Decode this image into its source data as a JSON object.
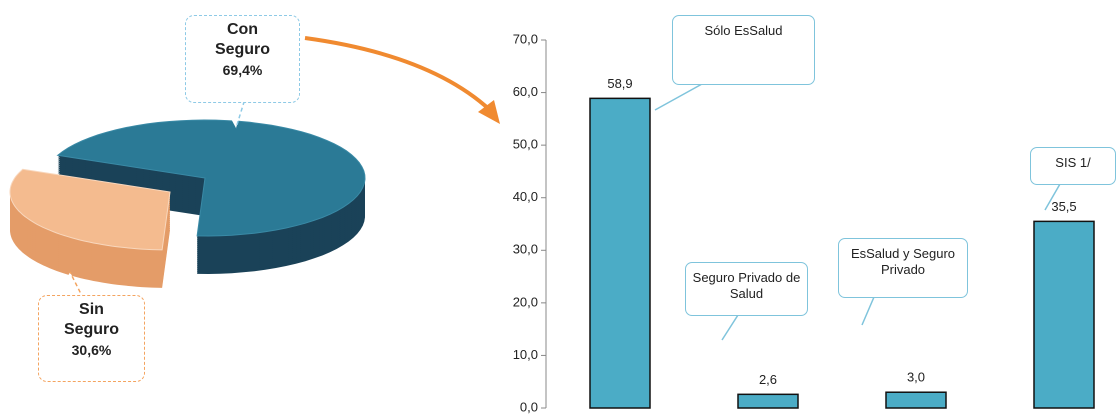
{
  "chart_data": [
    {
      "type": "pie",
      "categories": [
        "Con Seguro",
        "Sin Seguro"
      ],
      "values": [
        69.4,
        30.6
      ],
      "value_labels": [
        "69,4%",
        "30,6%"
      ],
      "colors": [
        "#2b7a96",
        "#f4bb8f"
      ]
    },
    {
      "type": "bar",
      "categories": [
        "Sólo EsSalud",
        "Seguro Privado de Salud",
        "EsSalud y Seguro Privado",
        "SIS 1/"
      ],
      "values": [
        58.9,
        2.6,
        3.0,
        35.5
      ],
      "value_labels": [
        "58,9",
        "2,6",
        "3,0",
        "35,5"
      ],
      "color": "#4bacc6",
      "ylim": [
        0,
        70
      ],
      "yticks": [
        {
          "value": 0,
          "label": "0,0"
        },
        {
          "value": 10,
          "label": "10,0"
        },
        {
          "value": 20,
          "label": "20,0"
        },
        {
          "value": 30,
          "label": "30,0"
        },
        {
          "value": 40,
          "label": "40,0"
        },
        {
          "value": 50,
          "label": "50,0"
        },
        {
          "value": 60,
          "label": "60,0"
        },
        {
          "value": 70,
          "label": "70,0"
        }
      ],
      "grid": false
    }
  ]
}
